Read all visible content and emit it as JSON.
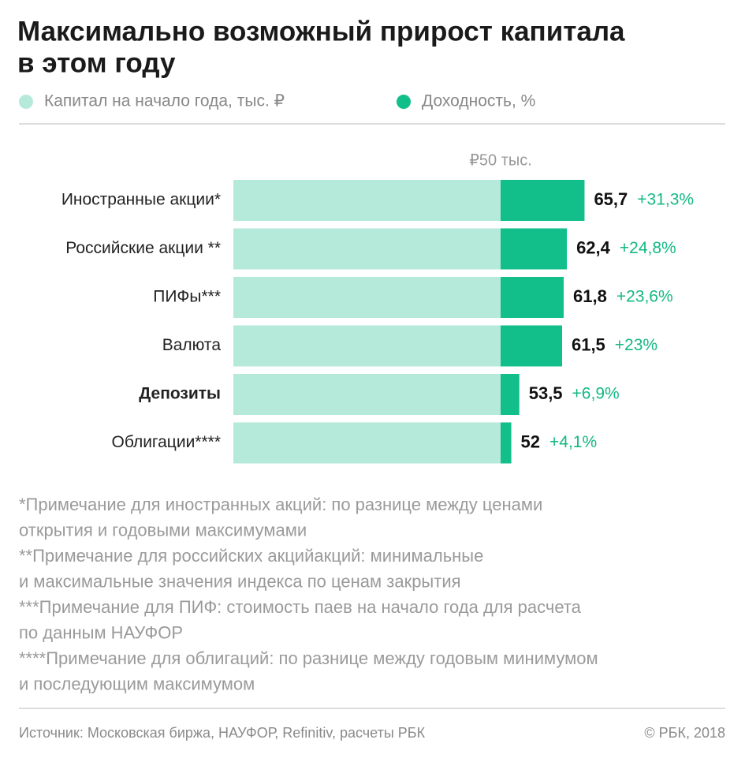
{
  "chart_data": {
    "type": "bar",
    "title": [
      "Максимально возможный прирост капитала",
      "в этом году"
    ],
    "categories": [
      "Иностранные акции*",
      "Российские акции **",
      "ПИФы***",
      "Валюта",
      "Депозиты",
      "Облигации****"
    ],
    "highlight": 4,
    "series": [
      {
        "name": "Капитал на начало года, тыс. ₽",
        "color": "#b5eadb",
        "values": [
          50,
          50,
          50,
          50,
          50,
          50
        ]
      },
      {
        "name": "Доходность, %",
        "color": "#12bf8a",
        "values": [
          31.3,
          24.8,
          23.6,
          23,
          6.9,
          4.1
        ],
        "value_labels": [
          "+31,3%",
          "+24,8%",
          "+23,6%",
          "+23%",
          "+6,9%",
          "+4,1%"
        ]
      }
    ],
    "totals": [
      65.7,
      62.4,
      61.8,
      61.5,
      53.5,
      52
    ],
    "totals_labels": [
      "65,7",
      "62,4",
      "61,8",
      "61,5",
      "53,5",
      "52"
    ],
    "xlim": [
      0,
      70
    ],
    "xticks": [
      {
        "value": 50,
        "label": "₽50 тыс."
      }
    ],
    "notes": [
      "*Примечание для иностранных акций: по разнице между ценами",
      "открытия и годовыми максимумами",
      "**Примечание для российских акцийакций: минимальные",
      "и максимальные значения индекса по ценам закрытия",
      "***Примечание для ПИФ: стоимость паев на начало года для расчета",
      "по данным НАУФОР",
      "****Примечание для облигаций: по разнице между годовым минимумом",
      "и последующим максимумом"
    ],
    "source": "Источник: Московская биржа, НАУФОР, Refinitiv, расчеты РБК",
    "copyright": "© РБК, 2018"
  }
}
